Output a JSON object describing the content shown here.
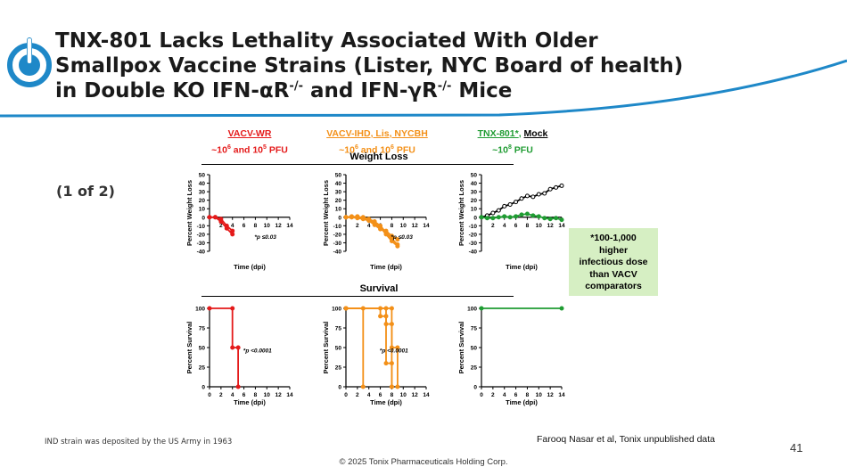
{
  "slide": {
    "title_line1": "TNX-801 Lacks Lethality Associated With Older",
    "title_line2": "Smallpox Vaccine Strains (Lister, NYC Board of health)",
    "title_line3_a": "in Double KO IFN-αR",
    "title_line3_sup1": "-/-",
    "title_line3_b": " and IFN-γR",
    "title_line3_sup2": "-/-",
    "title_line3_c": " Mice",
    "page_label": "(1 of 2)",
    "footnote_left": "IND strain was deposited by the US Army in 1963",
    "reference": "Farooq Nasar et al, Tonix unpublished data",
    "page_number": "41",
    "copyright": "© 2025 Tonix Pharmaceuticals Holding Corp.",
    "colors": {
      "accent_blue": "#1e88c8",
      "red": "#e41a1a",
      "orange": "#f39018",
      "green": "#1f9c32",
      "note_bg": "#d6efc3"
    }
  },
  "groups": [
    {
      "line1": "VACV-WR",
      "line2_a": "~10",
      "sup_a": "6",
      "line2_b": " and 10",
      "sup_b": "5",
      "line2_c": " PFU"
    },
    {
      "line1": "VACV-IHD, Lis, NYCBH",
      "line2_a": "~10",
      "sup_a": "6",
      "line2_b": " and 10",
      "sup_b": "6",
      "line2_c": " PFU"
    },
    {
      "line1_a": "TNX-801*",
      "line1_sep": ", ",
      "line1_b": "Mock",
      "line2_a": "~10",
      "sup_a": "8",
      "line2_c": " PFU"
    }
  ],
  "sections": {
    "weight_loss": "Weight Loss",
    "survival": "Survival"
  },
  "note": {
    "lines": [
      "*100-1,000",
      "higher",
      "infectious dose",
      "than VACV",
      "comparators"
    ]
  },
  "chart_data": [
    {
      "type": "line",
      "panel": "weight-vacv-wr",
      "xlabel": "Time (dpi)",
      "ylabel": "Percent Weight Loss",
      "xticks": [
        2,
        4,
        6,
        8,
        10,
        12,
        14
      ],
      "yticks": [
        50,
        40,
        30,
        20,
        10,
        0,
        -10,
        -20,
        -30,
        -40
      ],
      "xlim": [
        0,
        14
      ],
      "ylim": [
        -40,
        50
      ],
      "annotation": "*p ≤0.03",
      "series": [
        {
          "color": "#e41a1a",
          "x": [
            0,
            1,
            2,
            3,
            4
          ],
          "y": [
            0,
            0,
            -2,
            -10,
            -16
          ]
        },
        {
          "color": "#e41a1a",
          "x": [
            0,
            1,
            2,
            3,
            4
          ],
          "y": [
            0,
            0,
            -5,
            -13,
            -20
          ]
        }
      ]
    },
    {
      "type": "line",
      "panel": "weight-vacv-ihd",
      "xlabel": "Time (dpi)",
      "ylabel": "Percent Weight Loss",
      "xticks": [
        2,
        4,
        6,
        8,
        10,
        12,
        14
      ],
      "yticks": [
        50,
        40,
        30,
        20,
        10,
        0,
        -10,
        -20,
        -30,
        -40
      ],
      "xlim": [
        0,
        14
      ],
      "ylim": [
        -40,
        50
      ],
      "annotation": "*p ≤0.03",
      "series": [
        {
          "color": "#f39018",
          "x": [
            0,
            1,
            2,
            3,
            4,
            5,
            6,
            7,
            8,
            9
          ],
          "y": [
            0,
            1,
            0,
            0,
            -2,
            -5,
            -10,
            -18,
            -25,
            -32
          ]
        },
        {
          "color": "#f39018",
          "x": [
            0,
            1,
            2,
            3,
            4,
            5,
            6,
            7,
            8,
            9
          ],
          "y": [
            0,
            0,
            1,
            -1,
            -3,
            -7,
            -12,
            -20,
            -28,
            -34
          ]
        },
        {
          "color": "#f39018",
          "x": [
            0,
            1,
            2,
            3,
            4,
            5,
            6,
            7,
            8,
            9
          ],
          "y": [
            0,
            0,
            -1,
            -2,
            -4,
            -9,
            -14,
            -16,
            -22,
            -26
          ]
        }
      ]
    },
    {
      "type": "line",
      "panel": "weight-tnx801",
      "xlabel": "Time (dpi)",
      "ylabel": "Percent Weight Loss",
      "xticks": [
        2,
        4,
        6,
        8,
        10,
        12,
        14
      ],
      "yticks": [
        50,
        40,
        30,
        20,
        10,
        0,
        -10,
        -20,
        -30,
        -40
      ],
      "xlim": [
        0,
        14
      ],
      "ylim": [
        -40,
        50
      ],
      "series": [
        {
          "name": "Mock",
          "color": "#000000",
          "x": [
            0,
            1,
            2,
            3,
            4,
            5,
            6,
            7,
            8,
            9,
            10,
            11,
            12,
            13,
            14
          ],
          "y": [
            0,
            2,
            5,
            8,
            13,
            15,
            18,
            22,
            25,
            24,
            27,
            28,
            33,
            35,
            37
          ]
        },
        {
          "name": "TNX-801*",
          "color": "#1f9c32",
          "x": [
            0,
            1,
            2,
            3,
            4,
            5,
            6,
            7,
            8,
            9,
            10,
            11,
            12,
            13,
            14
          ],
          "y": [
            0,
            -1,
            -1,
            0,
            1,
            0,
            1,
            3,
            4,
            2,
            1,
            -1,
            -2,
            -1,
            -3
          ]
        }
      ]
    },
    {
      "type": "line",
      "panel": "survival-vacv-wr",
      "xlabel": "Time (dpi)",
      "ylabel": "Percent Survival",
      "xticks": [
        0,
        2,
        4,
        6,
        8,
        10,
        12,
        14
      ],
      "yticks": [
        0,
        25,
        50,
        75,
        100
      ],
      "xlim": [
        0,
        14
      ],
      "ylim": [
        0,
        100
      ],
      "annotation": "*p <0.0001",
      "series": [
        {
          "color": "#e41a1a",
          "x": [
            0,
            4,
            4,
            5,
            5
          ],
          "y": [
            100,
            100,
            50,
            50,
            0
          ]
        }
      ]
    },
    {
      "type": "line",
      "panel": "survival-vacv-ihd",
      "xlabel": "Time (dpi)",
      "ylabel": "Percent Survival",
      "xticks": [
        0,
        2,
        4,
        6,
        8,
        10,
        12,
        14
      ],
      "yticks": [
        0,
        25,
        50,
        75,
        100
      ],
      "xlim": [
        0,
        14
      ],
      "ylim": [
        0,
        100
      ],
      "annotation": "*p <0.0001",
      "series": [
        {
          "color": "#f39018",
          "x": [
            0,
            3,
            3
          ],
          "y": [
            100,
            100,
            0
          ]
        },
        {
          "color": "#f39018",
          "x": [
            0,
            6,
            6,
            7,
            7,
            8,
            8
          ],
          "y": [
            100,
            100,
            90,
            90,
            30,
            30,
            0
          ]
        },
        {
          "color": "#f39018",
          "x": [
            0,
            7,
            7,
            8,
            8,
            9,
            9
          ],
          "y": [
            100,
            100,
            80,
            80,
            50,
            50,
            0
          ]
        },
        {
          "color": "#f39018",
          "x": [
            0,
            8,
            8
          ],
          "y": [
            100,
            100,
            0
          ]
        }
      ]
    },
    {
      "type": "line",
      "panel": "survival-tnx801",
      "xlabel": "Time (dpi)",
      "ylabel": "Percent Survival",
      "xticks": [
        0,
        2,
        4,
        6,
        8,
        10,
        12,
        14
      ],
      "yticks": [
        0,
        25,
        50,
        75,
        100
      ],
      "xlim": [
        0,
        14
      ],
      "ylim": [
        0,
        100
      ],
      "series": [
        {
          "color": "#1f9c32",
          "x": [
            0,
            14
          ],
          "y": [
            100,
            100
          ]
        }
      ]
    }
  ]
}
